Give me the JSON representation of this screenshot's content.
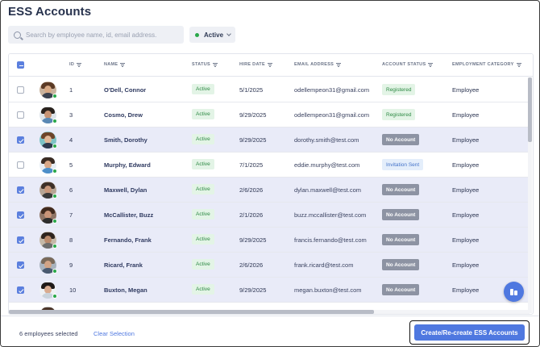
{
  "page": {
    "title": "ESS Accounts"
  },
  "search": {
    "placeholder": "Search by employee name, id, email address."
  },
  "filter": {
    "label": "Active"
  },
  "columns": {
    "id": "ID",
    "name": "NAME",
    "status": "STATUS",
    "hire_date": "HIRE DATE",
    "email": "EMAIL ADDRESS",
    "account_status": "ACCOUNT STATUS",
    "employment_category": "EMPLOYMENT CATEGORY"
  },
  "rows": [
    {
      "id": "1",
      "name": "O'Dell, Connor",
      "status": "Active",
      "hire_date": "5/1/2025",
      "email": "odellempeon31@gmail.com",
      "account_status": "Registered",
      "category": "Employee",
      "selected": false,
      "avatar": {
        "hair": "#5b3a25",
        "skin": "#d7a985",
        "body": "#3b4250",
        "bg": "#c9b39e"
      }
    },
    {
      "id": "3",
      "name": "Cosmo, Drew",
      "status": "Active",
      "hire_date": "9/29/2025",
      "email": "odellempeon31@gmail.com",
      "account_status": "Registered",
      "category": "Employee",
      "selected": false,
      "avatar": {
        "hair": "#2a221d",
        "skin": "#c89475",
        "body": "#5a88b4",
        "bg": "#dde4ea"
      }
    },
    {
      "id": "4",
      "name": "Smith, Dorothy",
      "status": "Active",
      "hire_date": "9/29/2025",
      "email": "dorothy.smith@test.com",
      "account_status": "No Account",
      "category": "Employee",
      "selected": true,
      "avatar": {
        "hair": "#6e4429",
        "skin": "#e1b797",
        "body": "#2f3a4e",
        "bg": "#7dc3c5"
      }
    },
    {
      "id": "5",
      "name": "Murphy, Edward",
      "status": "Active",
      "hire_date": "7/1/2025",
      "email": "eddie.murphy@test.com",
      "account_status": "Invitation Sent",
      "category": "Employee",
      "selected": false,
      "avatar": {
        "hair": "#3a2b22",
        "skin": "#d9a888",
        "body": "#4d8fc9",
        "bg": "#e7eef5"
      }
    },
    {
      "id": "6",
      "name": "Maxwell, Dylan",
      "status": "Active",
      "hire_date": "2/6/2026",
      "email": "dylan.maxwell@test.com",
      "account_status": "No Account",
      "category": "Employee",
      "selected": true,
      "avatar": {
        "hair": "#3e3028",
        "skin": "#c8977a",
        "body": "#3a3a3a",
        "bg": "#b6a595"
      }
    },
    {
      "id": "7",
      "name": "McCallister, Buzz",
      "status": "Active",
      "hire_date": "2/1/2026",
      "email": "buzz.mccallister@test.com",
      "account_status": "No Account",
      "category": "Employee",
      "selected": true,
      "avatar": {
        "hair": "#402a1e",
        "skin": "#c99478",
        "body": "#2d2d2d",
        "bg": "#8f7566"
      }
    },
    {
      "id": "8",
      "name": "Fernando, Frank",
      "status": "Active",
      "hire_date": "9/29/2025",
      "email": "francis.fernando@test.com",
      "account_status": "No Account",
      "category": "Employee",
      "selected": true,
      "avatar": {
        "hair": "#2e241f",
        "skin": "#b9896b",
        "body": "#6d6d6d",
        "bg": "#c4b8a8"
      }
    },
    {
      "id": "9",
      "name": "Ricard, Frank",
      "status": "Active",
      "hire_date": "2/6/2026",
      "email": "frank.ricard@test.com",
      "account_status": "No Account",
      "category": "Employee",
      "selected": true,
      "avatar": {
        "hair": "#7a6a5a",
        "skin": "#d2a486",
        "body": "#4a5a70",
        "bg": "#a8b3be"
      }
    },
    {
      "id": "10",
      "name": "Buxton, Megan",
      "status": "Active",
      "hire_date": "9/29/2025",
      "email": "megan.buxton@test.com",
      "account_status": "No Account",
      "category": "Employee",
      "selected": true,
      "avatar": {
        "hair": "#1f1a18",
        "skin": "#d9ab8f",
        "body": "#c9d3dc",
        "bg": "#eef1f4"
      }
    },
    {
      "id": "",
      "name": "",
      "status": "",
      "hire_date": "",
      "email": "",
      "account_status": "",
      "category": "",
      "selected": false,
      "avatar": {
        "hair": "#4a3428",
        "skin": "#cfa283",
        "body": "#555",
        "bg": "#bbb"
      }
    }
  ],
  "footer": {
    "selected_text": "6 employees selected",
    "clear_label": "Clear Selection",
    "cta_label": "Create/Re-create ESS Accounts"
  },
  "colors": {
    "accent": "#4f78e0",
    "active_green": "#2aa84a",
    "selected_row": "#e9ebf8",
    "no_account_badge": "#8d93a3"
  },
  "icons": {
    "search": "search-icon",
    "filter": "filter-icon",
    "chevron": "chevron-down-icon",
    "fab": "chat-icon"
  }
}
